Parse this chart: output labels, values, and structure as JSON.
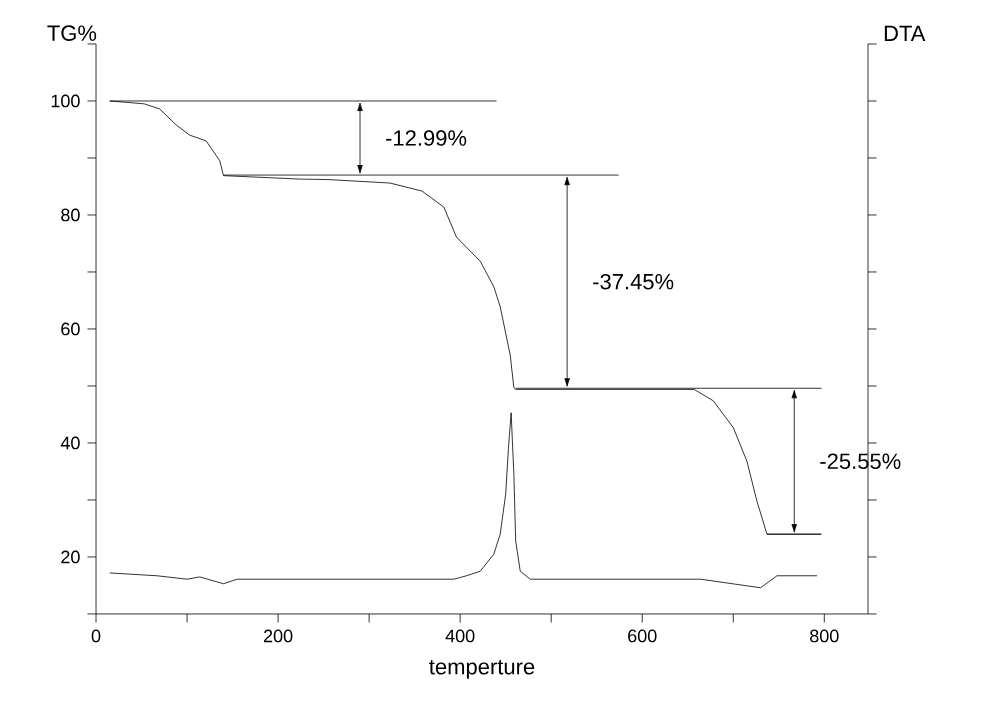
{
  "chart_data": {
    "type": "line",
    "ylabel": "TG%",
    "y2label": "DTA",
    "xlabel": "temperture",
    "xlim": [
      0,
      848
    ],
    "ylim": [
      10,
      110
    ],
    "xticks": [
      0,
      {
        "value": 100,
        "label": null
      },
      200,
      {
        "value": 300,
        "label": null
      },
      400,
      {
        "value": 500,
        "label": null
      },
      600,
      {
        "value": 700,
        "label": null
      },
      800
    ],
    "yticks": [
      {
        "value": 10,
        "label": null
      },
      20,
      {
        "value": 30,
        "label": null
      },
      40,
      {
        "value": 50,
        "label": null
      },
      60,
      {
        "value": 70,
        "label": null
      },
      80,
      {
        "value": 90,
        "label": null
      },
      100,
      {
        "value": 110,
        "label": null
      }
    ],
    "grid": false,
    "marker": "none",
    "line_style": "solid",
    "series": [
      {
        "color": "#000000",
        "x": [
          15,
          53,
          70,
          88,
          103,
          121,
          136,
          140,
          224,
          257,
          323,
          358,
          382,
          396,
          422,
          437,
          444,
          455,
          459,
          461,
          657,
          678,
          700,
          715,
          726,
          737,
          796
        ],
        "values": [
          100,
          99.5,
          98.6,
          95.8,
          94,
          93,
          89.5,
          86.9,
          86.3,
          86.2,
          85.6,
          84.2,
          81.4,
          76.1,
          71.9,
          67.4,
          63.9,
          55.4,
          49.7,
          49.4,
          49.4,
          47.4,
          42.7,
          36.8,
          29.8,
          24,
          24
        ]
      },
      {
        "color": "#000000",
        "x": [
          15,
          67,
          100,
          114,
          140,
          155,
          393,
          407,
          422,
          437,
          444,
          450,
          453,
          456,
          459,
          461,
          466,
          477,
          664,
          730,
          748,
          792
        ],
        "values": [
          17.2,
          16.7,
          16.1,
          16.5,
          15.3,
          16.1,
          16.1,
          16.7,
          17.5,
          20.5,
          24,
          31,
          39,
          45.3,
          34.5,
          22.8,
          17.5,
          16.1,
          16.1,
          14.6,
          16.7,
          16.7
        ]
      },
      {
        "color": "#000000",
        "x": [
          15,
          440
        ],
        "values": [
          100,
          100
        ]
      },
      {
        "color": "#000000",
        "x": [
          140,
          574
        ],
        "values": [
          87,
          87
        ]
      },
      {
        "color": "#000000",
        "x": [
          461,
          797
        ],
        "values": [
          49.6,
          49.6
        ]
      },
      {
        "color": "#000000",
        "x": [
          737,
          797
        ],
        "values": [
          24,
          24
        ]
      }
    ],
    "annotations": [
      "-12.99%",
      "-37.45%",
      "-25.55%"
    ]
  }
}
